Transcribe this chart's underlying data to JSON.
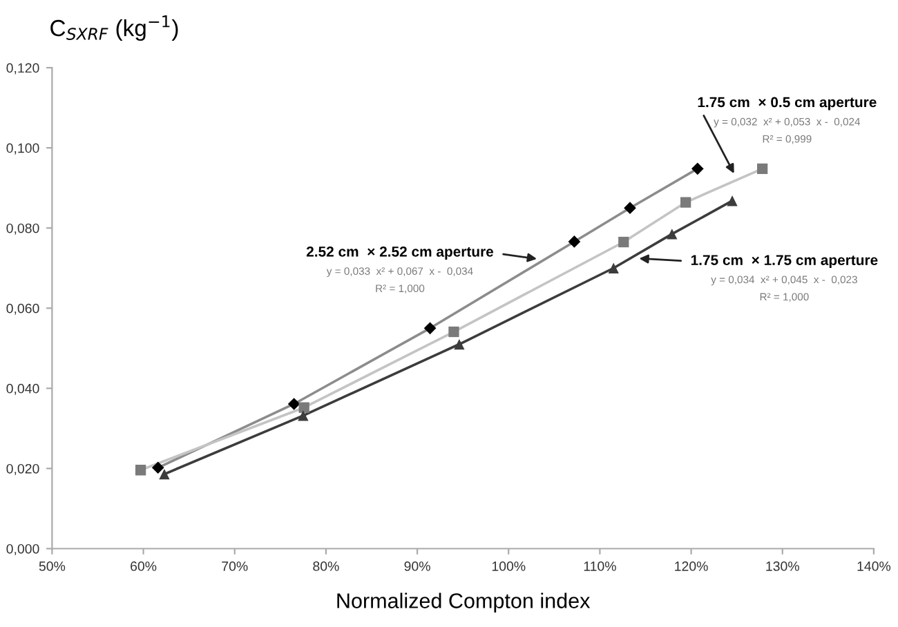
{
  "chart_data": {
    "type": "scatter",
    "ylabel": "C$_{SXRF}$ (kg$^{−1}$)",
    "xlabel": "Normalized Compton index",
    "xlim": [
      50,
      140
    ],
    "ylim": [
      0,
      0.12
    ],
    "xticks": [
      {
        "value": 50,
        "label": "50%"
      },
      {
        "value": 60,
        "label": "60%"
      },
      {
        "value": 70,
        "label": "70%"
      },
      {
        "value": 80,
        "label": "80%"
      },
      {
        "value": 90,
        "label": "90%"
      },
      {
        "value": 100,
        "label": "100%"
      },
      {
        "value": 110,
        "label": "110%"
      },
      {
        "value": 120,
        "label": "120%"
      },
      {
        "value": 130,
        "label": "130%"
      },
      {
        "value": 140,
        "label": "140%"
      }
    ],
    "yticks": [
      {
        "value": 0,
        "label": "0,000"
      },
      {
        "value": 0.02,
        "label": "0,020"
      },
      {
        "value": 0.04,
        "label": "0,040"
      },
      {
        "value": 0.06,
        "label": "0,060"
      },
      {
        "value": 0.08,
        "label": "0,080"
      },
      {
        "value": 0.1,
        "label": "0,100"
      },
      {
        "value": 0.12,
        "label": "0,120"
      }
    ],
    "grid": false,
    "legend": false,
    "series": [
      {
        "type": "line",
        "marker": "none",
        "color": "#8c8c8c",
        "x": [
          61.6,
          76.5,
          91.4,
          107.2,
          113.3,
          120.7
        ],
        "values": [
          0.0202,
          0.0361,
          0.055,
          0.0766,
          0.085,
          0.0948
        ]
      },
      {
        "type": "line",
        "marker": "none",
        "color": "#c4c4c4",
        "x": [
          59.7,
          77.6,
          94.0,
          112.6,
          119.4,
          127.8
        ],
        "values": [
          0.0196,
          0.0352,
          0.0541,
          0.0765,
          0.0864,
          0.0948
        ]
      },
      {
        "type": "line",
        "marker": "none",
        "color": "#3c3c3c",
        "x": [
          62.3,
          77.5,
          94.6,
          111.5,
          117.9,
          124.5
        ],
        "values": [
          0.0186,
          0.0332,
          0.051,
          0.07,
          0.0785,
          0.0868
        ]
      },
      {
        "marker": "diamond",
        "color": "#000000",
        "x": [
          61.6,
          76.5,
          91.4,
          107.2,
          113.3,
          120.7
        ],
        "values": [
          0.0202,
          0.0361,
          0.055,
          0.0766,
          0.085,
          0.0948
        ]
      },
      {
        "marker": "square",
        "color": "#7a7a7a",
        "x": [
          59.7,
          77.6,
          94.0,
          112.6,
          119.4,
          127.8
        ],
        "values": [
          0.0196,
          0.0352,
          0.0541,
          0.0765,
          0.0864,
          0.0948
        ]
      },
      {
        "marker": "triangle",
        "color": "#3c3c3c",
        "x": [
          62.3,
          77.5,
          94.6,
          111.5,
          117.9,
          124.5
        ],
        "values": [
          0.0186,
          0.0332,
          0.051,
          0.07,
          0.0785,
          0.0868
        ]
      }
    ],
    "annotations": [
      {
        "text": "2.52 cm  × 2.52 cm aperture",
        "x": 103.1,
        "y": 0.0723
      },
      "y = 0,033  x² + 0,067  x -  0,034",
      "R² = 1,000",
      {
        "text": "1.75 cm  × 0.5 cm aperture",
        "x": 124.7,
        "y": 0.0936
      },
      "y = 0,032  x² + 0,053  x -  0,024",
      "R² = 0,999",
      {
        "text": "1.75 cm  × 1.75 cm aperture",
        "x": 114.3,
        "y": 0.0724
      },
      "y = 0,034  x² + 0,045  x -  0,023",
      "R² = 1,000"
    ]
  }
}
